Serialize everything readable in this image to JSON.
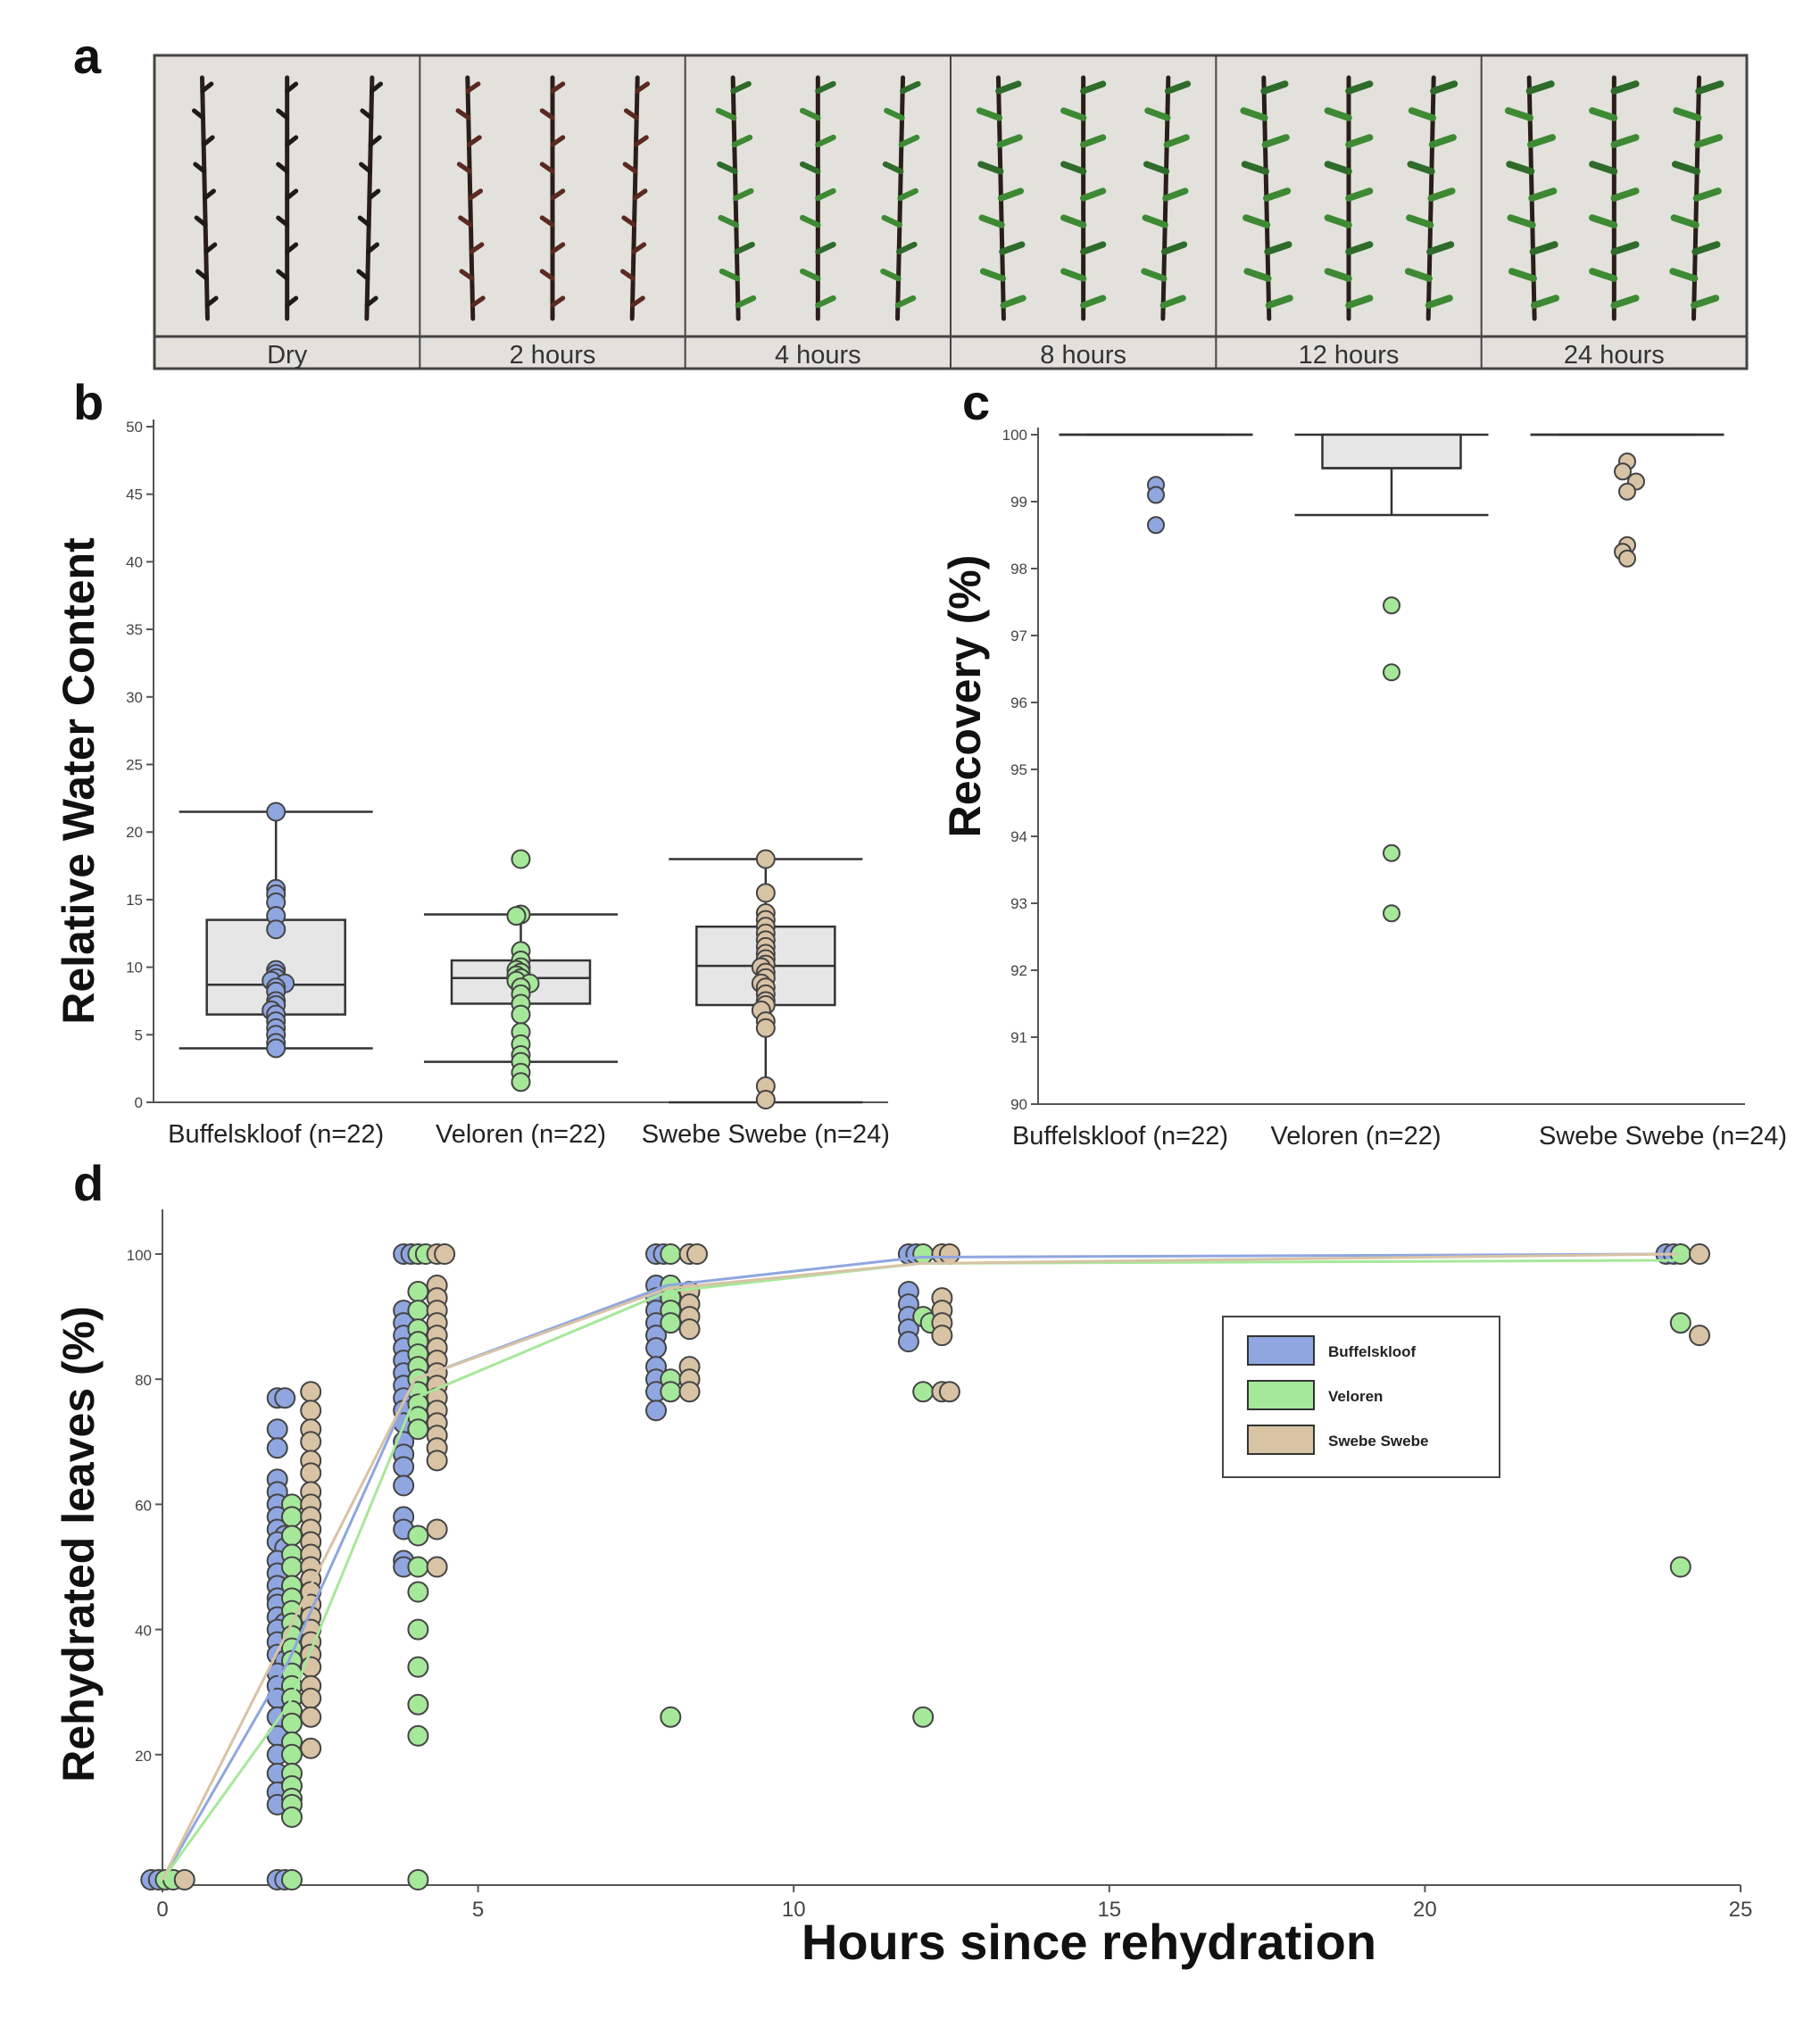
{
  "panel_letters": [
    "a",
    "b",
    "c",
    "d"
  ],
  "colors": {
    "Buffelskloof": "#8fa6e0",
    "Veloren": "#a6e89a",
    "Swebe Swebe": "#d8c3a5",
    "box_fill": "#e6e6e6",
    "photo_bg": "#e2e1dc"
  },
  "photo_strip": {
    "labels": [
      "Dry",
      "2 hours",
      "4 hours",
      "8 hours",
      "12 hours",
      "24 hours"
    ],
    "greenness": [
      0,
      0.1,
      0.45,
      0.75,
      0.85,
      0.9
    ]
  },
  "chart_data": [
    {
      "id": "b",
      "type": "box",
      "xlabel": "",
      "ylabel": "Relative Water Content",
      "ylim": [
        0,
        50
      ],
      "yticks": [
        0,
        5,
        10,
        15,
        20,
        25,
        30,
        35,
        40,
        45,
        50
      ],
      "categories": [
        "Buffelskloof (n=22)",
        "Veloren (n=22)",
        "Swebe Swebe (n=24)"
      ],
      "series": [
        {
          "name": "Buffelskloof",
          "whisker_low": 4,
          "q1": 6.5,
          "median": 8.7,
          "q3": 13.5,
          "whisker_high": 21.5,
          "points": [
            21.5,
            15.8,
            15.4,
            14.8,
            13.8,
            12.8,
            9.8,
            9.5,
            9.2,
            9.0,
            8.8,
            8.5,
            8.2,
            7.5,
            7.2,
            6.8,
            6.5,
            6.0,
            5.5,
            5.0,
            4.4,
            4.0
          ]
        },
        {
          "name": "Veloren",
          "whisker_low": 3,
          "q1": 7.3,
          "median": 9.2,
          "q3": 10.5,
          "whisker_high": 13.9,
          "points": [
            18.0,
            13.9,
            13.8,
            11.2,
            10.5,
            10.0,
            9.8,
            9.6,
            9.4,
            9.2,
            9.0,
            8.8,
            8.5,
            8.0,
            7.3,
            6.5,
            5.2,
            4.3,
            3.5,
            3.0,
            2.2,
            1.5
          ]
        },
        {
          "name": "Swebe Swebe",
          "whisker_low": 0,
          "q1": 7.2,
          "median": 10.1,
          "q3": 13.0,
          "whisker_high": 18.0,
          "points": [
            18.0,
            15.5,
            14.0,
            13.5,
            13.0,
            12.5,
            12.0,
            11.5,
            11.0,
            10.6,
            10.2,
            10.0,
            9.6,
            9.2,
            8.8,
            8.5,
            8.0,
            7.5,
            7.2,
            6.8,
            6.0,
            5.5,
            1.2,
            0.2
          ]
        }
      ]
    },
    {
      "id": "c",
      "type": "box",
      "xlabel": "",
      "ylabel": "Recovery (%)",
      "ylim": [
        90,
        100
      ],
      "yticks": [
        90,
        91,
        92,
        93,
        94,
        95,
        96,
        97,
        98,
        99,
        100
      ],
      "categories": [
        "Buffelskloof (n=22)",
        "Veloren (n=22)",
        "Swebe Swebe (n=24)"
      ],
      "series": [
        {
          "name": "Buffelskloof",
          "whisker_low": 100,
          "q1": 100,
          "median": 100,
          "q3": 100,
          "whisker_high": 100,
          "outliers": [
            99.25,
            99.1,
            98.65
          ]
        },
        {
          "name": "Veloren",
          "whisker_low": 98.8,
          "q1": 99.5,
          "median": 99.5,
          "q3": 100,
          "whisker_high": 100,
          "outliers": [
            97.45,
            96.45,
            93.75,
            92.85
          ]
        },
        {
          "name": "Swebe Swebe",
          "whisker_low": 100,
          "q1": 100,
          "median": 100,
          "q3": 100,
          "whisker_high": 100,
          "outliers": [
            99.6,
            99.45,
            99.3,
            99.15,
            98.35,
            98.25,
            98.15
          ]
        }
      ]
    },
    {
      "id": "d",
      "type": "scatter",
      "xlabel": "Hours since rehydration",
      "ylabel": "Rehydrated leaves (%)",
      "xlim": [
        0,
        25
      ],
      "ylim": [
        0,
        100
      ],
      "xticks": [
        0,
        5,
        10,
        15,
        20,
        25
      ],
      "yticks": [
        0,
        20,
        40,
        60,
        80,
        100
      ],
      "legend_position": "right",
      "series": [
        {
          "name": "Buffelskloof",
          "curve": [
            [
              0,
              0
            ],
            [
              2,
              35
            ],
            [
              4,
              80
            ],
            [
              8,
              95
            ],
            [
              12,
              99.5
            ],
            [
              24,
              100
            ]
          ],
          "groups": [
            {
              "x": 0,
              "values": [
                0,
                0
              ]
            },
            {
              "x": 2,
              "values": [
                77,
                77,
                72,
                69,
                64,
                62,
                60,
                58,
                56,
                55,
                54,
                53,
                51,
                49,
                47,
                45,
                44,
                42,
                41,
                40,
                38,
                36,
                35,
                33,
                31,
                29,
                26,
                23,
                20,
                17,
                14,
                12,
                0,
                0
              ]
            },
            {
              "x": 4,
              "values": [
                100,
                100,
                91,
                89,
                87,
                85,
                83,
                81,
                79,
                77,
                75,
                73,
                70,
                68,
                66,
                63,
                58,
                56,
                51,
                50
              ]
            },
            {
              "x": 8,
              "values": [
                100,
                100,
                95,
                93,
                91,
                89,
                87,
                85,
                82,
                80,
                78,
                75
              ]
            },
            {
              "x": 12,
              "values": [
                100,
                100,
                94,
                92,
                90,
                88,
                86
              ]
            },
            {
              "x": 24,
              "values": [
                100,
                100
              ]
            }
          ]
        },
        {
          "name": "Veloren",
          "curve": [
            [
              0,
              0
            ],
            [
              2,
              28
            ],
            [
              4,
              77
            ],
            [
              8,
              94
            ],
            [
              12,
              98.5
            ],
            [
              24,
              99
            ]
          ],
          "groups": [
            {
              "x": 0,
              "values": [
                0,
                0
              ]
            },
            {
              "x": 2,
              "values": [
                60,
                58,
                55,
                52,
                50,
                47,
                45,
                43,
                41,
                39,
                37,
                35,
                33,
                31,
                29,
                27,
                25,
                22,
                20,
                17,
                15,
                13,
                12,
                10,
                0
              ]
            },
            {
              "x": 4,
              "values": [
                100,
                100,
                94,
                91,
                88,
                86,
                84,
                82,
                80,
                78,
                76,
                74,
                72,
                55,
                50,
                46,
                40,
                34,
                28,
                23,
                0
              ]
            },
            {
              "x": 8,
              "values": [
                100,
                95,
                93,
                91,
                89,
                80,
                78,
                26
              ]
            },
            {
              "x": 12,
              "values": [
                100,
                90,
                89,
                78,
                26
              ]
            },
            {
              "x": 24,
              "values": [
                100,
                89,
                50
              ]
            }
          ]
        },
        {
          "name": "Swebe Swebe",
          "curve": [
            [
              0,
              0
            ],
            [
              2,
              40
            ],
            [
              4,
              80
            ],
            [
              8,
              94.5
            ],
            [
              12,
              98.5
            ],
            [
              24,
              100
            ]
          ],
          "groups": [
            {
              "x": 0,
              "values": [
                0
              ]
            },
            {
              "x": 2,
              "values": [
                78,
                75,
                72,
                70,
                67,
                65,
                62,
                60,
                58,
                56,
                54,
                52,
                50,
                48,
                46,
                44,
                42,
                40,
                38,
                36,
                34,
                31,
                29,
                26,
                21
              ]
            },
            {
              "x": 4,
              "values": [
                100,
                100,
                95,
                93,
                91,
                89,
                87,
                85,
                83,
                81,
                79,
                77,
                75,
                73,
                71,
                69,
                67,
                56,
                50
              ]
            },
            {
              "x": 8,
              "values": [
                100,
                100,
                94,
                92,
                90,
                88,
                82,
                80,
                78
              ]
            },
            {
              "x": 12,
              "values": [
                100,
                100,
                93,
                91,
                89,
                87,
                78,
                78
              ]
            },
            {
              "x": 24,
              "values": [
                100,
                87
              ]
            }
          ]
        }
      ]
    }
  ]
}
